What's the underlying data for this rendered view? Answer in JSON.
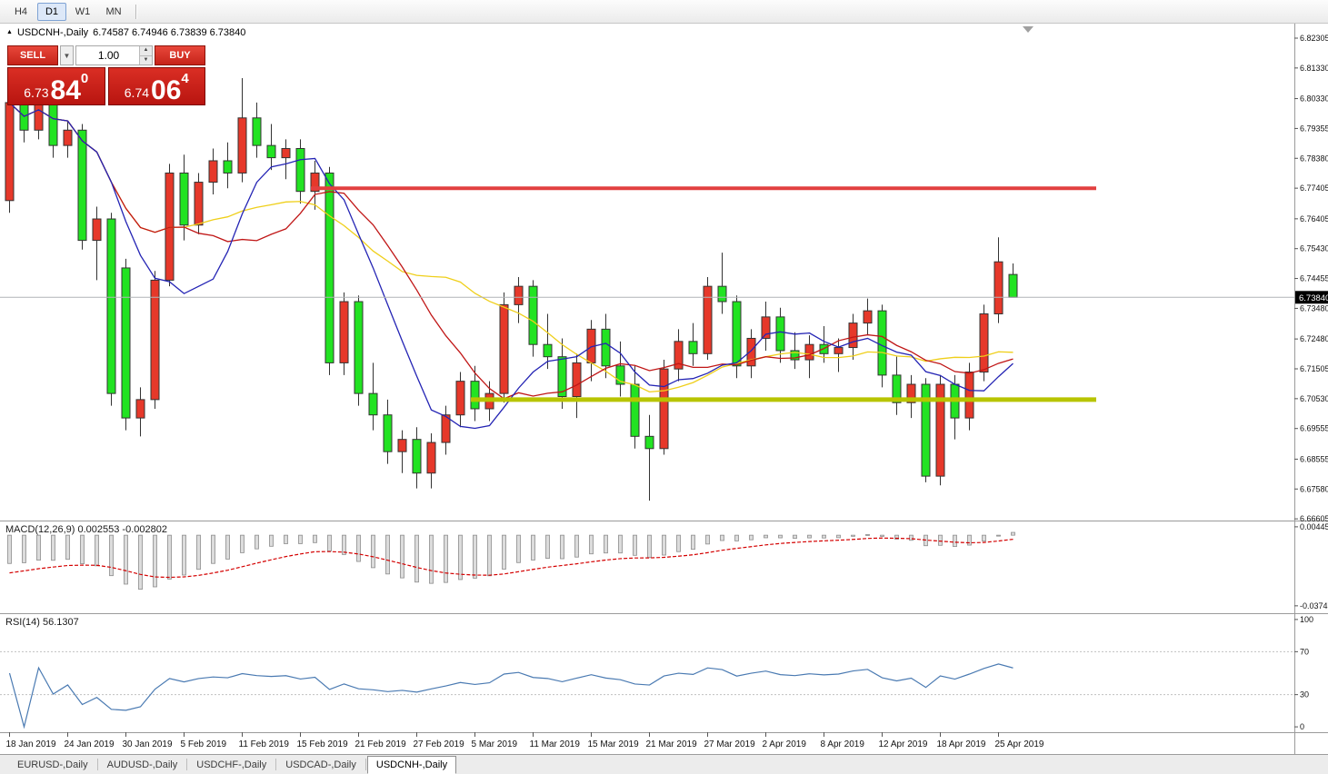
{
  "toolbar": {
    "timeframes": [
      {
        "label": "H4",
        "active": false
      },
      {
        "label": "D1",
        "active": true
      },
      {
        "label": "W1",
        "active": false
      },
      {
        "label": "MN",
        "active": false
      }
    ]
  },
  "chart_header": {
    "symbol": "USDCNH-,Daily",
    "ohlc": "6.74587 6.74946 6.73839 6.73840"
  },
  "trade_panel": {
    "sell_label": "SELL",
    "buy_label": "BUY",
    "volume": "1.00",
    "bid": {
      "prefix": "6.73",
      "big": "84",
      "sup": "0"
    },
    "ask": {
      "prefix": "6.74",
      "big": "06",
      "sup": "4"
    }
  },
  "indicators": {
    "macd_label": "MACD(12,26,9) 0.002553 -0.002802",
    "rsi_label": "RSI(14) 56.1307"
  },
  "axes": {
    "price_labels": [
      "6.82305",
      "6.81330",
      "6.80330",
      "6.79355",
      "6.78380",
      "6.77405",
      "6.76405",
      "6.75430",
      "6.74455",
      "6.73480",
      "6.72480",
      "6.71505",
      "6.70530",
      "6.69555",
      "6.68555",
      "6.67580",
      "6.66605"
    ],
    "current_price": "6.73840",
    "macd_labels": [
      "0.004459",
      "-0.037475"
    ],
    "rsi_labels": [
      "100",
      "70",
      "30",
      "0"
    ],
    "date_labels": [
      {
        "text": "18 Jan 2019",
        "i": 0
      },
      {
        "text": "24 Jan 2019",
        "i": 4
      },
      {
        "text": "30 Jan 2019",
        "i": 8
      },
      {
        "text": "5 Feb 2019",
        "i": 12
      },
      {
        "text": "11 Feb 2019",
        "i": 16
      },
      {
        "text": "15 Feb 2019",
        "i": 20
      },
      {
        "text": "21 Feb 2019",
        "i": 24
      },
      {
        "text": "27 Feb 2019",
        "i": 28
      },
      {
        "text": "5 Mar 2019",
        "i": 32
      },
      {
        "text": "11 Mar 2019",
        "i": 36
      },
      {
        "text": "15 Mar 2019",
        "i": 40
      },
      {
        "text": "21 Mar 2019",
        "i": 44
      },
      {
        "text": "27 Mar 2019",
        "i": 48
      },
      {
        "text": "2 Apr 2019",
        "i": 52
      },
      {
        "text": "8 Apr 2019",
        "i": 56
      },
      {
        "text": "12 Apr 2019",
        "i": 60
      },
      {
        "text": "18 Apr 2019",
        "i": 64
      },
      {
        "text": "25 Apr 2019",
        "i": 68
      }
    ]
  },
  "chart_data": {
    "type": "candlestick",
    "symbol": "USDCNH-",
    "timeframe": "Daily",
    "color_convention": "red = bullish, green = bearish",
    "price_range": [
      6.6655,
      6.8272
    ],
    "bid_line": 6.7384,
    "dates": [
      "18 Jan",
      "21 Jan",
      "22 Jan",
      "23 Jan",
      "24 Jan",
      "25 Jan",
      "28 Jan",
      "29 Jan",
      "30 Jan",
      "31 Jan",
      "1 Feb",
      "4 Feb",
      "5 Feb",
      "6 Feb",
      "7 Feb",
      "8 Feb",
      "11 Feb",
      "12 Feb",
      "13 Feb",
      "14 Feb",
      "15 Feb",
      "18 Feb",
      "19 Feb",
      "20 Feb",
      "21 Feb",
      "22 Feb",
      "25 Feb",
      "26 Feb",
      "27 Feb",
      "28 Feb",
      "1 Mar",
      "4 Mar",
      "5 Mar",
      "6 Mar",
      "7 Mar",
      "8 Mar",
      "11 Mar",
      "12 Mar",
      "13 Mar",
      "14 Mar",
      "15 Mar",
      "18 Mar",
      "19 Mar",
      "20 Mar",
      "21 Mar",
      "22 Mar",
      "25 Mar",
      "26 Mar",
      "27 Mar",
      "28 Mar",
      "29 Mar",
      "1 Apr",
      "2 Apr",
      "3 Apr",
      "4 Apr",
      "5 Apr",
      "8 Apr",
      "9 Apr",
      "10 Apr",
      "11 Apr",
      "12 Apr",
      "15 Apr",
      "16 Apr",
      "17 Apr",
      "18 Apr",
      "22 Apr",
      "23 Apr",
      "24 Apr",
      "25 Apr",
      "26 Apr"
    ],
    "candles": [
      [
        6.77,
        6.806,
        6.766,
        6.802
      ],
      [
        6.802,
        6.806,
        6.789,
        6.793
      ],
      [
        6.793,
        6.808,
        6.79,
        6.804
      ],
      [
        6.804,
        6.807,
        6.784,
        6.788
      ],
      [
        6.788,
        6.796,
        6.784,
        6.793
      ],
      [
        6.793,
        6.795,
        6.754,
        6.757
      ],
      [
        6.757,
        6.768,
        6.744,
        6.764
      ],
      [
        6.764,
        6.766,
        6.703,
        6.707
      ],
      [
        6.748,
        6.751,
        6.695,
        6.699
      ],
      [
        6.699,
        6.709,
        6.693,
        6.705
      ],
      [
        6.705,
        6.747,
        6.702,
        6.744
      ],
      [
        6.744,
        6.782,
        6.742,
        6.779
      ],
      [
        6.779,
        6.785,
        6.757,
        6.762
      ],
      [
        6.762,
        6.779,
        6.759,
        6.776
      ],
      [
        6.776,
        6.787,
        6.772,
        6.783
      ],
      [
        6.783,
        6.789,
        6.774,
        6.779
      ],
      [
        6.779,
        6.81,
        6.776,
        6.797
      ],
      [
        6.797,
        6.802,
        6.784,
        6.788
      ],
      [
        6.788,
        6.795,
        6.78,
        6.784
      ],
      [
        6.784,
        6.79,
        6.777,
        6.787
      ],
      [
        6.787,
        6.79,
        6.769,
        6.773
      ],
      [
        6.773,
        6.783,
        6.767,
        6.779
      ],
      [
        6.779,
        6.781,
        6.713,
        6.717
      ],
      [
        6.717,
        6.74,
        6.713,
        6.737
      ],
      [
        6.737,
        6.739,
        6.703,
        6.707
      ],
      [
        6.707,
        6.717,
        6.695,
        6.7
      ],
      [
        6.7,
        6.705,
        6.684,
        6.688
      ],
      [
        6.688,
        6.695,
        6.681,
        6.692
      ],
      [
        6.692,
        6.696,
        6.676,
        6.681
      ],
      [
        6.681,
        6.694,
        6.676,
        6.691
      ],
      [
        6.691,
        6.703,
        6.687,
        6.7
      ],
      [
        6.7,
        6.714,
        6.696,
        6.711
      ],
      [
        6.711,
        6.716,
        6.698,
        6.702
      ],
      [
        6.702,
        6.711,
        6.698,
        6.707
      ],
      [
        6.707,
        6.74,
        6.704,
        6.736
      ],
      [
        6.736,
        6.745,
        6.73,
        6.742
      ],
      [
        6.742,
        6.744,
        6.719,
        6.723
      ],
      [
        6.723,
        6.733,
        6.715,
        6.719
      ],
      [
        6.719,
        6.725,
        6.702,
        6.706
      ],
      [
        6.706,
        6.72,
        6.699,
        6.717
      ],
      [
        6.717,
        6.731,
        6.711,
        6.728
      ],
      [
        6.728,
        6.733,
        6.712,
        6.716
      ],
      [
        6.716,
        6.724,
        6.706,
        6.71
      ],
      [
        6.71,
        6.716,
        6.689,
        6.693
      ],
      [
        6.693,
        6.7,
        6.672,
        6.689
      ],
      [
        6.689,
        6.718,
        6.687,
        6.715
      ],
      [
        6.715,
        6.728,
        6.711,
        6.724
      ],
      [
        6.724,
        6.73,
        6.716,
        6.72
      ],
      [
        6.72,
        6.745,
        6.718,
        6.742
      ],
      [
        6.742,
        6.753,
        6.733,
        6.737
      ],
      [
        6.737,
        6.739,
        6.712,
        6.716
      ],
      [
        6.716,
        6.728,
        6.712,
        6.725
      ],
      [
        6.725,
        6.737,
        6.721,
        6.732
      ],
      [
        6.732,
        6.735,
        6.717,
        6.721
      ],
      [
        6.721,
        6.727,
        6.715,
        6.718
      ],
      [
        6.718,
        6.726,
        6.712,
        6.723
      ],
      [
        6.723,
        6.729,
        6.717,
        6.72
      ],
      [
        6.72,
        6.725,
        6.714,
        6.722
      ],
      [
        6.722,
        6.733,
        6.718,
        6.73
      ],
      [
        6.73,
        6.738,
        6.726,
        6.734
      ],
      [
        6.734,
        6.736,
        6.709,
        6.713
      ],
      [
        6.713,
        6.719,
        6.7,
        6.704
      ],
      [
        6.704,
        6.713,
        6.699,
        6.71
      ],
      [
        6.71,
        6.712,
        6.678,
        6.68
      ],
      [
        6.68,
        6.713,
        6.677,
        6.71
      ],
      [
        6.71,
        6.713,
        6.692,
        6.699
      ],
      [
        6.699,
        6.717,
        6.695,
        6.714
      ],
      [
        6.714,
        6.736,
        6.711,
        6.733
      ],
      [
        6.733,
        6.758,
        6.73,
        6.75
      ],
      [
        6.74587,
        6.74946,
        6.73839,
        6.7384
      ]
    ],
    "moving_averages": [
      {
        "period": 21,
        "color": "#efcf1a"
      },
      {
        "period": 13,
        "color": "#c01616"
      },
      {
        "period": 8,
        "color": "#2424b4"
      }
    ],
    "macd": {
      "fast": 12,
      "slow": 26,
      "signal": 9,
      "current": "0.002553",
      "current_signal": "-0.002802"
    },
    "rsi": {
      "period": 14,
      "current": "56.1307",
      "levels": [
        70,
        30
      ]
    },
    "hlines": [
      {
        "name": "resistance",
        "price": 6.774,
        "from_index": 21,
        "color": "#e24040",
        "width": 4
      },
      {
        "name": "support",
        "price": 6.705,
        "from_index": 32,
        "color": "#b8c400",
        "width": 5
      }
    ]
  },
  "colors": {
    "bull": "#e6382a",
    "bear": "#22e322",
    "candle_outline": "#333333",
    "macd_bar": "#dcdcdc",
    "macd_bar_outline": "#8c8c8c",
    "macd_signal": "#d40000",
    "rsi_line": "#4a7ab2",
    "rsi_level": "#c0c0c0",
    "bid_line": "#b0b4b8",
    "price_tag_bg": "#000000",
    "pane_border": "#9a9a9a",
    "trade_red": "#d2221a"
  },
  "tabs": [
    {
      "label": "EURUSD-,Daily",
      "active": false
    },
    {
      "label": "AUDUSD-,Daily",
      "active": false
    },
    {
      "label": "USDCHF-,Daily",
      "active": false
    },
    {
      "label": "USDCAD-,Daily",
      "active": false
    },
    {
      "label": "USDCNH-,Daily",
      "active": true
    }
  ]
}
